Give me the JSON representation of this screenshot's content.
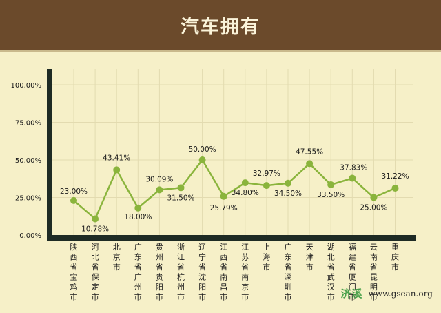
{
  "header": {
    "title": "汽车拥有"
  },
  "watermark": {
    "brand": "济溪",
    "url": "www.gsean.org"
  },
  "colors": {
    "header_bg": "#6b4a2b",
    "plot_bg": "#f6f0c8",
    "axis": "#1e2b24",
    "line": "#8ab43c",
    "marker": "#8ab43c",
    "grid": "#e3dbb0",
    "text": "#1a1a1a"
  },
  "chart_data": {
    "type": "line",
    "title": "汽车拥有",
    "xlabel": "",
    "ylabel": "",
    "ylim": [
      0,
      100
    ],
    "grid": true,
    "legend": "none",
    "y_ticks": [
      "0.00%",
      "25.00%",
      "50.00%",
      "75.00%",
      "100.00%"
    ],
    "categories": [
      "陕西省宝鸡市",
      "河北省保定市",
      "北京市",
      "广东省广州市",
      "贵州省贵阳市",
      "浙江省杭州市",
      "辽宁省沈阳市",
      "江西省南昌市",
      "江苏省南京市",
      "上海市",
      "广东省深圳市",
      "天津市",
      "湖北省武汉市",
      "福建省厦门市",
      "云南省昆明市",
      "重庆市"
    ],
    "series": [
      {
        "values": [
          23.0,
          10.78,
          43.41,
          18.0,
          30.09,
          31.5,
          50.0,
          25.79,
          34.8,
          32.97,
          34.5,
          47.55,
          33.5,
          37.83,
          25.0,
          31.22
        ],
        "data_labels": [
          "23.00%",
          "10.78%",
          "43.41%",
          "18.00%",
          "30.09%",
          "31.50%",
          "50.00%",
          "25.79%",
          "34.80%",
          "32.97%",
          "34.50%",
          "47.55%",
          "33.50%",
          "",
          "25.00%",
          "31.22%"
        ]
      }
    ],
    "extra_labels": [
      "37.83%"
    ]
  }
}
